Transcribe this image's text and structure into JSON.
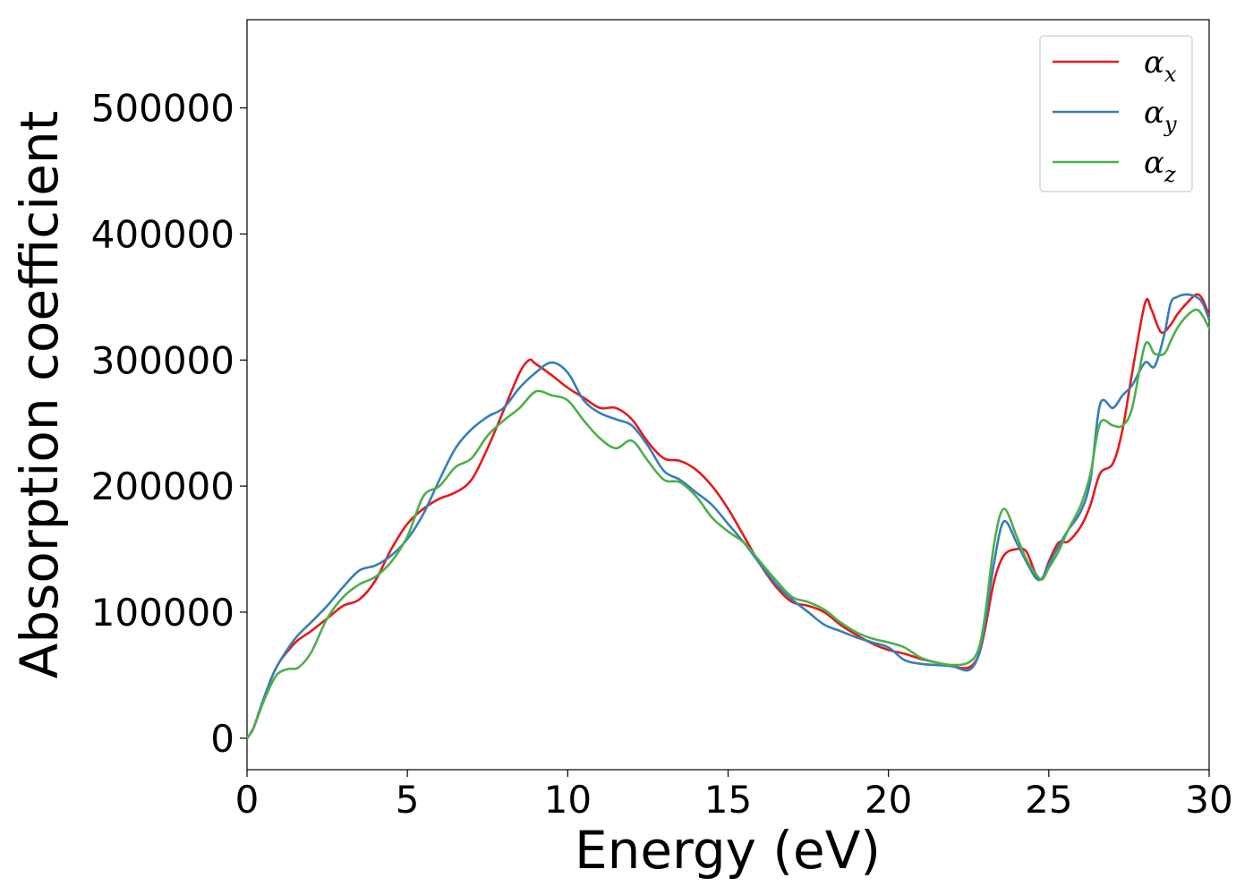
{
  "chart_data": {
    "type": "line",
    "title": "",
    "xlabel": "Energy (eV)",
    "ylabel": "Absorption coefficient",
    "xlim": [
      0,
      30
    ],
    "ylim": [
      -25000,
      570000
    ],
    "xticks": [
      0,
      5,
      10,
      15,
      20,
      25,
      30
    ],
    "yticks": [
      0,
      100000,
      200000,
      300000,
      400000,
      500000
    ],
    "grid": false,
    "legend_position": "top-right",
    "series": [
      {
        "name": "α",
        "subscript": "x",
        "color": "#e41a1c",
        "x": [
          0,
          0.2,
          0.5,
          0.8,
          1.0,
          1.3,
          1.6,
          2.0,
          2.5,
          3.0,
          3.5,
          4.0,
          4.5,
          5.0,
          5.5,
          6.0,
          6.5,
          7.0,
          7.5,
          8.0,
          8.5,
          8.8,
          9.0,
          9.5,
          10.0,
          10.5,
          11.0,
          11.5,
          12.0,
          12.5,
          13.0,
          13.5,
          14.0,
          14.5,
          15.0,
          15.5,
          16.0,
          16.5,
          17.0,
          17.5,
          18.0,
          18.5,
          19.0,
          19.5,
          20.0,
          20.5,
          21.0,
          21.5,
          22.0,
          22.5,
          22.8,
          23.0,
          23.3,
          23.6,
          24.0,
          24.3,
          24.6,
          24.8,
          25.0,
          25.3,
          25.6,
          26.0,
          26.3,
          26.6,
          27.0,
          27.3,
          27.6,
          28.0,
          28.2,
          28.5,
          28.8,
          29.0,
          29.3,
          29.6,
          29.8,
          30.0
        ],
        "y": [
          0,
          8000,
          30000,
          50000,
          60000,
          70000,
          78000,
          85000,
          95000,
          105000,
          110000,
          125000,
          150000,
          170000,
          182000,
          190000,
          195000,
          205000,
          230000,
          260000,
          290000,
          300000,
          297000,
          288000,
          278000,
          270000,
          262000,
          262000,
          253000,
          235000,
          222000,
          220000,
          213000,
          200000,
          182000,
          160000,
          138000,
          120000,
          108000,
          105000,
          100000,
          90000,
          82000,
          75000,
          70000,
          67000,
          63000,
          60000,
          57000,
          56000,
          65000,
          85000,
          125000,
          145000,
          150000,
          148000,
          130000,
          127000,
          140000,
          155000,
          156000,
          168000,
          185000,
          210000,
          218000,
          245000,
          290000,
          345000,
          340000,
          322000,
          328000,
          336000,
          345000,
          352000,
          348000,
          335000
        ]
      },
      {
        "name": "α",
        "subscript": "y",
        "color": "#377eb8",
        "x": [
          0,
          0.2,
          0.5,
          0.8,
          1.0,
          1.3,
          1.6,
          2.0,
          2.5,
          3.0,
          3.5,
          4.0,
          4.5,
          5.0,
          5.5,
          6.0,
          6.5,
          7.0,
          7.5,
          8.0,
          8.5,
          9.0,
          9.5,
          10.0,
          10.5,
          11.0,
          11.5,
          12.0,
          12.5,
          13.0,
          13.5,
          14.0,
          14.5,
          15.0,
          15.5,
          16.0,
          16.5,
          17.0,
          17.5,
          18.0,
          18.5,
          19.0,
          19.5,
          20.0,
          20.5,
          21.0,
          21.5,
          22.0,
          22.5,
          22.8,
          23.0,
          23.3,
          23.6,
          24.0,
          24.3,
          24.6,
          24.8,
          25.0,
          25.3,
          25.6,
          26.0,
          26.3,
          26.6,
          27.0,
          27.3,
          27.6,
          28.0,
          28.3,
          28.6,
          28.8,
          29.0,
          29.3,
          29.6,
          29.8,
          30.0
        ],
        "y": [
          0,
          8000,
          30000,
          50000,
          60000,
          72000,
          82000,
          92000,
          105000,
          120000,
          133000,
          137000,
          145000,
          158000,
          178000,
          205000,
          230000,
          245000,
          255000,
          262000,
          278000,
          290000,
          298000,
          290000,
          268000,
          258000,
          253000,
          248000,
          232000,
          212000,
          205000,
          195000,
          185000,
          170000,
          155000,
          138000,
          122000,
          110000,
          100000,
          90000,
          85000,
          80000,
          76000,
          72000,
          62000,
          59000,
          58000,
          57000,
          54000,
          65000,
          90000,
          140000,
          172000,
          155000,
          140000,
          127000,
          127000,
          138000,
          152000,
          165000,
          180000,
          205000,
          265000,
          262000,
          272000,
          280000,
          298000,
          295000,
          320000,
          345000,
          350000,
          352000,
          350000,
          345000,
          332000
        ]
      },
      {
        "name": "α",
        "subscript": "z",
        "color": "#4daf4a",
        "x": [
          0,
          0.2,
          0.5,
          0.8,
          1.0,
          1.3,
          1.6,
          2.0,
          2.5,
          3.0,
          3.5,
          4.0,
          4.5,
          5.0,
          5.5,
          6.0,
          6.5,
          7.0,
          7.5,
          8.0,
          8.5,
          9.0,
          9.5,
          10.0,
          10.5,
          11.0,
          11.5,
          12.0,
          12.5,
          13.0,
          13.5,
          14.0,
          14.5,
          15.0,
          15.5,
          16.0,
          16.5,
          17.0,
          17.5,
          18.0,
          18.5,
          19.0,
          19.5,
          20.0,
          20.5,
          21.0,
          21.5,
          22.0,
          22.5,
          22.8,
          23.0,
          23.3,
          23.6,
          24.0,
          24.3,
          24.6,
          24.8,
          25.0,
          25.3,
          25.6,
          26.0,
          26.3,
          26.6,
          27.0,
          27.3,
          27.6,
          28.0,
          28.3,
          28.6,
          28.8,
          29.0,
          29.3,
          29.6,
          29.8,
          30.0
        ],
        "y": [
          0,
          8000,
          28000,
          45000,
          52000,
          55000,
          56000,
          68000,
          95000,
          112000,
          122000,
          128000,
          140000,
          160000,
          192000,
          200000,
          215000,
          222000,
          240000,
          252000,
          262000,
          275000,
          272000,
          268000,
          252000,
          238000,
          230000,
          236000,
          220000,
          205000,
          203000,
          192000,
          175000,
          164000,
          155000,
          140000,
          125000,
          112000,
          108000,
          102000,
          92000,
          84000,
          79000,
          76000,
          72000,
          64000,
          60000,
          58000,
          60000,
          70000,
          95000,
          155000,
          182000,
          160000,
          142000,
          130000,
          126000,
          135000,
          148000,
          165000,
          185000,
          210000,
          250000,
          248000,
          248000,
          262000,
          312000,
          305000,
          305000,
          315000,
          325000,
          335000,
          340000,
          335000,
          325000
        ]
      }
    ]
  }
}
